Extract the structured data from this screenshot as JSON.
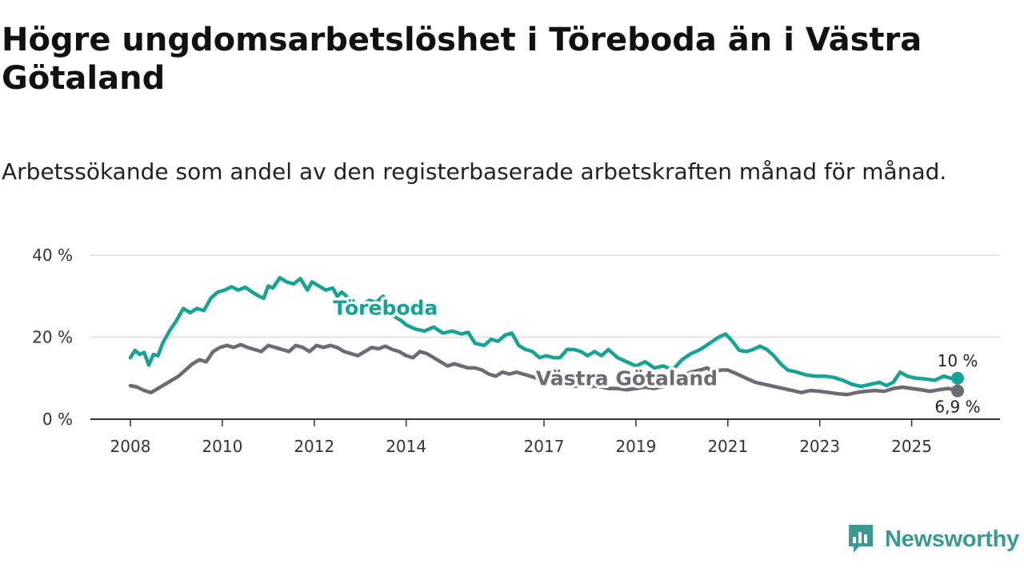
{
  "title": "Högre ungdomsarbetslöshet i Töreboda än i Västra Götaland",
  "subtitle": "Arbetssökande som andel av den registerbaserade arbetskraften månad för månad.",
  "brand": "Newsworthy",
  "colors": {
    "toreboda": "#16a394",
    "vg": "#6b6b73",
    "grid": "#dddddd",
    "axis": "#333333"
  },
  "chart_data": {
    "type": "line",
    "title": "Högre ungdomsarbetslöshet i Töreboda än i Västra Götaland",
    "xlabel": "",
    "ylabel": "",
    "x_ticks": [
      "2008",
      "2010",
      "2012",
      "2014",
      "2017",
      "2019",
      "2021",
      "2023",
      "2025"
    ],
    "y_ticks": [
      "0 %",
      "20 %",
      "40 %"
    ],
    "ylim": [
      0,
      40
    ],
    "xlim": [
      2007.8,
      2026.3
    ],
    "series": [
      {
        "name": "Töreboda",
        "end_label": "10 %",
        "points": [
          [
            2008.0,
            15.0
          ],
          [
            2008.1,
            16.8
          ],
          [
            2008.2,
            15.8
          ],
          [
            2008.3,
            16.3
          ],
          [
            2008.4,
            13.2
          ],
          [
            2008.5,
            15.8
          ],
          [
            2008.6,
            15.5
          ],
          [
            2008.7,
            18.5
          ],
          [
            2008.85,
            21.5
          ],
          [
            2009.0,
            24.0
          ],
          [
            2009.15,
            27.0
          ],
          [
            2009.3,
            26.0
          ],
          [
            2009.45,
            27.0
          ],
          [
            2009.6,
            26.5
          ],
          [
            2009.75,
            29.5
          ],
          [
            2009.9,
            31.0
          ],
          [
            2010.05,
            31.5
          ],
          [
            2010.2,
            32.3
          ],
          [
            2010.35,
            31.5
          ],
          [
            2010.5,
            32.2
          ],
          [
            2010.65,
            31.0
          ],
          [
            2010.8,
            30.0
          ],
          [
            2010.9,
            29.5
          ],
          [
            2011.0,
            32.5
          ],
          [
            2011.1,
            32.0
          ],
          [
            2011.25,
            34.5
          ],
          [
            2011.4,
            33.5
          ],
          [
            2011.55,
            33.0
          ],
          [
            2011.7,
            34.3
          ],
          [
            2011.85,
            31.5
          ],
          [
            2011.95,
            33.5
          ],
          [
            2012.1,
            32.5
          ],
          [
            2012.25,
            31.5
          ],
          [
            2012.4,
            32.0
          ],
          [
            2012.5,
            30.0
          ],
          [
            2012.6,
            31.0
          ],
          [
            2012.75,
            29.5
          ],
          [
            2012.9,
            27.0
          ],
          [
            2013.05,
            28.0
          ],
          [
            2013.2,
            29.0
          ],
          [
            2013.35,
            28.5
          ],
          [
            2013.5,
            30.0
          ],
          [
            2013.6,
            27.0
          ],
          [
            2013.75,
            25.0
          ],
          [
            2013.9,
            24.0
          ],
          [
            2014.0,
            23.0
          ],
          [
            2014.2,
            22.0
          ],
          [
            2014.4,
            21.5
          ],
          [
            2014.6,
            22.5
          ],
          [
            2014.8,
            21.0
          ],
          [
            2015.0,
            21.5
          ],
          [
            2015.2,
            20.8
          ],
          [
            2015.35,
            21.2
          ],
          [
            2015.5,
            18.5
          ],
          [
            2015.7,
            18.0
          ],
          [
            2015.85,
            19.5
          ],
          [
            2016.0,
            19.0
          ],
          [
            2016.15,
            20.5
          ],
          [
            2016.3,
            21.0
          ],
          [
            2016.45,
            18.0
          ],
          [
            2016.6,
            17.0
          ],
          [
            2016.75,
            16.5
          ],
          [
            2016.9,
            15.0
          ],
          [
            2017.05,
            15.5
          ],
          [
            2017.2,
            15.0
          ],
          [
            2017.35,
            15.0
          ],
          [
            2017.5,
            17.0
          ],
          [
            2017.65,
            17.0
          ],
          [
            2017.8,
            16.5
          ],
          [
            2017.95,
            15.5
          ],
          [
            2018.1,
            16.5
          ],
          [
            2018.25,
            15.5
          ],
          [
            2018.4,
            17.0
          ],
          [
            2018.6,
            15.0
          ],
          [
            2018.8,
            14.0
          ],
          [
            2019.0,
            13.0
          ],
          [
            2019.2,
            14.0
          ],
          [
            2019.4,
            12.5
          ],
          [
            2019.6,
            13.0
          ],
          [
            2019.8,
            12.0
          ],
          [
            2020.0,
            14.5
          ],
          [
            2020.2,
            16.0
          ],
          [
            2020.4,
            17.0
          ],
          [
            2020.6,
            18.5
          ],
          [
            2020.8,
            20.0
          ],
          [
            2020.95,
            20.8
          ],
          [
            2021.1,
            19.0
          ],
          [
            2021.25,
            16.8
          ],
          [
            2021.4,
            16.5
          ],
          [
            2021.55,
            17.0
          ],
          [
            2021.7,
            17.8
          ],
          [
            2021.85,
            17.0
          ],
          [
            2022.0,
            15.5
          ],
          [
            2022.15,
            13.5
          ],
          [
            2022.3,
            12.0
          ],
          [
            2022.5,
            11.5
          ],
          [
            2022.7,
            10.8
          ],
          [
            2022.9,
            10.5
          ],
          [
            2023.1,
            10.5
          ],
          [
            2023.3,
            10.2
          ],
          [
            2023.5,
            9.5
          ],
          [
            2023.7,
            8.5
          ],
          [
            2023.9,
            8.0
          ],
          [
            2024.1,
            8.5
          ],
          [
            2024.3,
            9.0
          ],
          [
            2024.45,
            8.2
          ],
          [
            2024.6,
            9.0
          ],
          [
            2024.75,
            11.5
          ],
          [
            2024.9,
            10.5
          ],
          [
            2025.1,
            10.0
          ],
          [
            2025.3,
            9.8
          ],
          [
            2025.5,
            9.5
          ],
          [
            2025.7,
            10.5
          ],
          [
            2025.85,
            10.0
          ],
          [
            2026.0,
            10.0
          ]
        ]
      },
      {
        "name": "Västra Götaland",
        "end_label": "6,9 %",
        "points": [
          [
            2008.0,
            8.2
          ],
          [
            2008.15,
            7.8
          ],
          [
            2008.3,
            7.0
          ],
          [
            2008.45,
            6.5
          ],
          [
            2008.6,
            7.5
          ],
          [
            2008.75,
            8.5
          ],
          [
            2008.9,
            9.5
          ],
          [
            2009.05,
            10.5
          ],
          [
            2009.2,
            12.0
          ],
          [
            2009.35,
            13.5
          ],
          [
            2009.5,
            14.5
          ],
          [
            2009.65,
            14.0
          ],
          [
            2009.8,
            16.5
          ],
          [
            2009.95,
            17.5
          ],
          [
            2010.1,
            18.0
          ],
          [
            2010.25,
            17.5
          ],
          [
            2010.4,
            18.2
          ],
          [
            2010.55,
            17.5
          ],
          [
            2010.7,
            17.0
          ],
          [
            2010.85,
            16.5
          ],
          [
            2011.0,
            18.0
          ],
          [
            2011.15,
            17.5
          ],
          [
            2011.3,
            17.0
          ],
          [
            2011.45,
            16.5
          ],
          [
            2011.6,
            18.0
          ],
          [
            2011.75,
            17.5
          ],
          [
            2011.9,
            16.5
          ],
          [
            2012.05,
            18.0
          ],
          [
            2012.2,
            17.5
          ],
          [
            2012.35,
            18.0
          ],
          [
            2012.5,
            17.5
          ],
          [
            2012.65,
            16.5
          ],
          [
            2012.8,
            16.0
          ],
          [
            2012.95,
            15.5
          ],
          [
            2013.1,
            16.5
          ],
          [
            2013.25,
            17.5
          ],
          [
            2013.4,
            17.2
          ],
          [
            2013.55,
            17.8
          ],
          [
            2013.7,
            17.0
          ],
          [
            2013.85,
            16.5
          ],
          [
            2014.0,
            15.5
          ],
          [
            2014.15,
            15.0
          ],
          [
            2014.3,
            16.5
          ],
          [
            2014.45,
            16.0
          ],
          [
            2014.6,
            15.0
          ],
          [
            2014.75,
            14.0
          ],
          [
            2014.9,
            13.0
          ],
          [
            2015.05,
            13.5
          ],
          [
            2015.2,
            13.0
          ],
          [
            2015.35,
            12.5
          ],
          [
            2015.5,
            12.5
          ],
          [
            2015.65,
            12.0
          ],
          [
            2015.8,
            11.0
          ],
          [
            2015.95,
            10.5
          ],
          [
            2016.1,
            11.5
          ],
          [
            2016.25,
            11.0
          ],
          [
            2016.4,
            11.5
          ],
          [
            2016.55,
            11.0
          ],
          [
            2016.7,
            10.5
          ],
          [
            2016.85,
            10.0
          ],
          [
            2017.0,
            10.0
          ],
          [
            2017.2,
            9.5
          ],
          [
            2017.4,
            8.5
          ],
          [
            2017.6,
            8.0
          ],
          [
            2017.8,
            8.2
          ],
          [
            2018.0,
            8.0
          ],
          [
            2018.2,
            8.0
          ],
          [
            2018.4,
            7.5
          ],
          [
            2018.6,
            7.5
          ],
          [
            2018.8,
            7.2
          ],
          [
            2019.0,
            7.5
          ],
          [
            2019.2,
            7.8
          ],
          [
            2019.4,
            7.5
          ],
          [
            2019.6,
            8.0
          ],
          [
            2019.8,
            9.5
          ],
          [
            2020.0,
            10.5
          ],
          [
            2020.2,
            11.5
          ],
          [
            2020.4,
            12.0
          ],
          [
            2020.55,
            12.5
          ],
          [
            2020.7,
            11.5
          ],
          [
            2020.85,
            12.0
          ],
          [
            2021.0,
            12.0
          ],
          [
            2021.2,
            11.0
          ],
          [
            2021.4,
            10.0
          ],
          [
            2021.6,
            9.0
          ],
          [
            2021.8,
            8.5
          ],
          [
            2022.0,
            8.0
          ],
          [
            2022.2,
            7.5
          ],
          [
            2022.4,
            7.0
          ],
          [
            2022.6,
            6.5
          ],
          [
            2022.8,
            7.0
          ],
          [
            2023.0,
            6.8
          ],
          [
            2023.2,
            6.5
          ],
          [
            2023.4,
            6.2
          ],
          [
            2023.6,
            6.0
          ],
          [
            2023.8,
            6.5
          ],
          [
            2024.0,
            6.8
          ],
          [
            2024.2,
            7.0
          ],
          [
            2024.4,
            6.8
          ],
          [
            2024.6,
            7.5
          ],
          [
            2024.8,
            7.8
          ],
          [
            2025.0,
            7.5
          ],
          [
            2025.2,
            7.2
          ],
          [
            2025.4,
            6.8
          ],
          [
            2025.6,
            7.2
          ],
          [
            2025.8,
            7.5
          ],
          [
            2026.0,
            6.9
          ]
        ]
      }
    ],
    "inline_labels": [
      {
        "text": "Töreboda",
        "series": 0,
        "x": 2013.55,
        "y": 25.5
      },
      {
        "text": "Västra Götaland",
        "series": 1,
        "x": 2018.8,
        "y": 8.3
      }
    ]
  }
}
